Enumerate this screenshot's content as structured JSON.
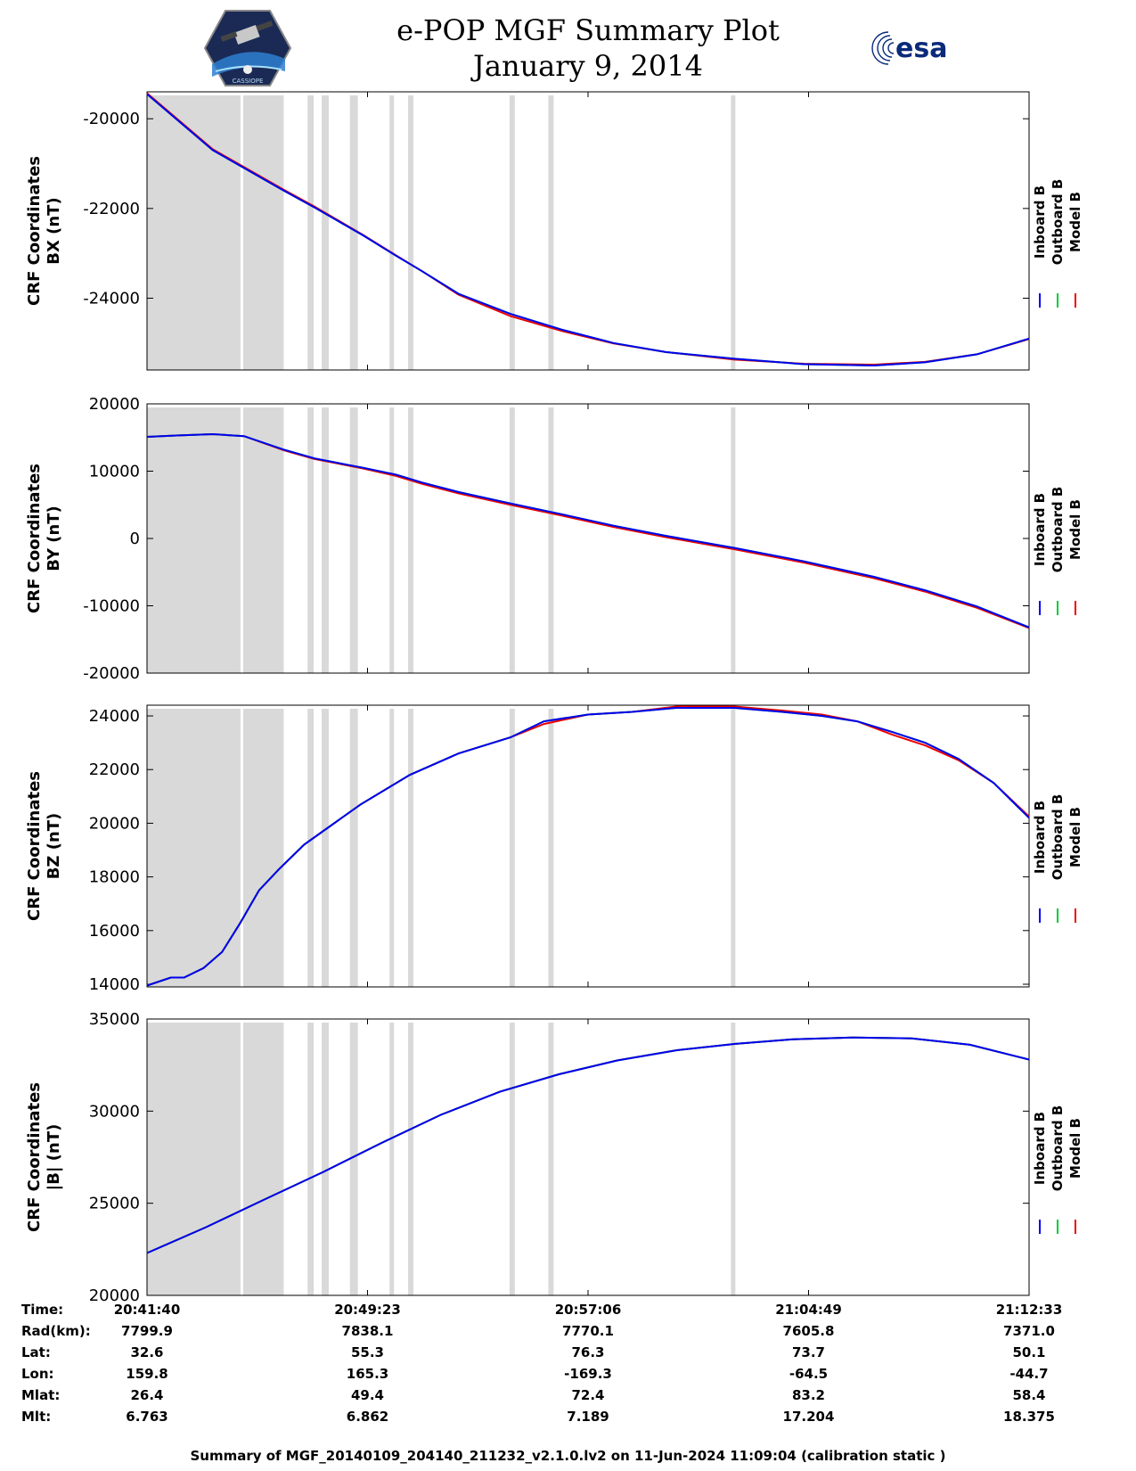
{
  "header": {
    "title": "e-POP MGF Summary Plot",
    "date": "January 9, 2014",
    "epop_logo_text": "CASSIOPE",
    "esa_logo_text": "esa"
  },
  "legend": [
    "Inboard B",
    "Outboard B",
    "Model B"
  ],
  "colors": {
    "inboard": "#0000ee",
    "outboard": "#00cc33",
    "model": "#ee0000",
    "shade": "#d9d9d9"
  },
  "chart_data": [
    {
      "type": "line",
      "ylabel": [
        "CRF Coordinates",
        "BX (nT)"
      ],
      "ylim": [
        -25600,
        -19400
      ],
      "yticks": [
        -20000,
        -22000,
        -24000
      ],
      "series": [
        {
          "name": "Inboard B",
          "x": [
            0,
            7.45,
            15.5,
            19.0,
            24.5,
            28.2,
            31.2,
            35.3,
            41.2,
            47.0,
            52.9,
            58.8,
            66.6,
            74.5,
            82.4,
            88.2,
            94.1,
            100
          ],
          "y": [
            -19450,
            -20700,
            -21600,
            -21980,
            -22600,
            -23050,
            -23400,
            -23900,
            -24350,
            -24700,
            -25000,
            -25200,
            -25350,
            -25470,
            -25500,
            -25430,
            -25250,
            -24900
          ]
        },
        {
          "name": "Outboard B",
          "x": [
            0,
            7.45,
            15.5,
            19.0,
            24.5,
            28.2,
            31.2,
            35.3,
            41.2,
            47.0,
            52.9,
            58.8,
            66.6,
            74.5,
            82.4,
            88.2,
            94.1,
            100
          ],
          "y": [
            -19450,
            -20700,
            -21600,
            -21980,
            -22600,
            -23050,
            -23400,
            -23900,
            -24350,
            -24700,
            -25000,
            -25200,
            -25350,
            -25470,
            -25500,
            -25430,
            -25250,
            -24900
          ]
        },
        {
          "name": "Model B",
          "x": [
            0,
            7.45,
            15.5,
            19.0,
            24.5,
            28.2,
            31.2,
            35.3,
            41.2,
            47.0,
            52.9,
            58.8,
            66.6,
            74.5,
            82.4,
            88.2,
            94.1,
            100
          ],
          "y": [
            -19430,
            -20680,
            -21580,
            -21960,
            -22590,
            -23040,
            -23400,
            -23920,
            -24400,
            -24730,
            -25010,
            -25200,
            -25370,
            -25460,
            -25480,
            -25420,
            -25250,
            -24910
          ]
        }
      ]
    },
    {
      "type": "line",
      "ylabel": [
        "CRF Coordinates",
        "BY (nT)"
      ],
      "ylim": [
        -20000,
        20000
      ],
      "yticks": [
        20000,
        10000,
        0,
        -10000,
        -20000
      ],
      "series": [
        {
          "name": "Inboard B",
          "x": [
            0,
            3.3,
            7.45,
            11.0,
            15.5,
            19.0,
            24.5,
            28.2,
            31.2,
            35.3,
            41.2,
            47.0,
            52.9,
            58.8,
            66.6,
            74.5,
            82.4,
            88.2,
            94.1,
            100
          ],
          "y": [
            15100,
            15300,
            15500,
            15200,
            13200,
            11900,
            10500,
            9500,
            8300,
            6900,
            5200,
            3600,
            1900,
            400,
            -1400,
            -3400,
            -5700,
            -7700,
            -10100,
            -13200
          ]
        },
        {
          "name": "Outboard B",
          "x": [
            0,
            3.3,
            7.45,
            11.0,
            15.5,
            19.0,
            24.5,
            28.2,
            31.2,
            35.3,
            41.2,
            47.0,
            52.9,
            58.8,
            66.6,
            74.5,
            82.4,
            88.2,
            94.1,
            100
          ],
          "y": [
            15100,
            15300,
            15500,
            15200,
            13200,
            11900,
            10500,
            9500,
            8300,
            6900,
            5200,
            3600,
            1900,
            400,
            -1400,
            -3400,
            -5700,
            -7700,
            -10100,
            -13200
          ]
        },
        {
          "name": "Model B",
          "x": [
            0,
            3.3,
            7.45,
            11.0,
            15.5,
            19.0,
            24.5,
            28.2,
            31.2,
            35.3,
            41.2,
            47.0,
            52.9,
            58.8,
            66.6,
            74.5,
            82.4,
            88.2,
            94.1,
            100
          ],
          "y": [
            15100,
            15300,
            15500,
            15200,
            13100,
            11800,
            10400,
            9300,
            8100,
            6700,
            5000,
            3400,
            1700,
            200,
            -1600,
            -3600,
            -5900,
            -7900,
            -10300,
            -13300
          ]
        }
      ]
    },
    {
      "type": "line",
      "ylabel": [
        "CRF Coordinates",
        "BZ (nT)"
      ],
      "ylim": [
        13900,
        24400
      ],
      "yticks": [
        24000,
        22000,
        20000,
        18000,
        16000,
        14000
      ],
      "series": [
        {
          "name": "Inboard B",
          "x": [
            0,
            2.7,
            4.2,
            6.4,
            8.5,
            10.6,
            12.7,
            15.0,
            17.8,
            19.5,
            24.2,
            29.8,
            35.3,
            41.2,
            45.0,
            50.0,
            55.0,
            60.0,
            66.6,
            72.0,
            76.5,
            80.5,
            84.5,
            88.2,
            92.0,
            96.0,
            100
          ],
          "y": [
            13950,
            14250,
            14250,
            14600,
            15200,
            16300,
            17500,
            18300,
            19200,
            19600,
            20700,
            21800,
            22600,
            23200,
            23800,
            24050,
            24150,
            24300,
            24300,
            24150,
            24000,
            23800,
            23400,
            23000,
            22400,
            21500,
            20200
          ]
        },
        {
          "name": "Outboard B",
          "x": [
            0,
            2.7,
            4.2,
            6.4,
            8.5,
            10.6,
            12.7,
            15.0,
            17.8,
            19.5,
            24.2,
            29.8,
            35.3,
            41.2,
            45.0,
            50.0,
            55.0,
            60.0,
            66.6,
            72.0,
            76.5,
            80.5,
            84.5,
            88.2,
            92.0,
            96.0,
            100
          ],
          "y": [
            13950,
            14250,
            14250,
            14600,
            15200,
            16300,
            17500,
            18300,
            19200,
            19600,
            20700,
            21800,
            22600,
            23200,
            23800,
            24050,
            24150,
            24300,
            24300,
            24150,
            24000,
            23800,
            23400,
            23000,
            22400,
            21500,
            20200
          ]
        },
        {
          "name": "Model B",
          "x": [
            0,
            2.7,
            4.2,
            6.4,
            8.5,
            10.6,
            12.7,
            15.0,
            17.8,
            19.5,
            24.2,
            29.8,
            35.3,
            41.2,
            45.0,
            50.0,
            55.0,
            60.0,
            66.6,
            72.0,
            76.5,
            80.5,
            84.5,
            88.2,
            92.0,
            96.0,
            100
          ],
          "y": [
            13950,
            14250,
            14250,
            14600,
            15200,
            16300,
            17500,
            18300,
            19200,
            19600,
            20700,
            21800,
            22600,
            23200,
            23700,
            24050,
            24150,
            24350,
            24350,
            24200,
            24050,
            23800,
            23300,
            22900,
            22350,
            21500,
            20250
          ]
        }
      ]
    },
    {
      "type": "line",
      "ylabel": [
        "CRF Coordinates",
        "|B| (nT)"
      ],
      "ylim": [
        20000,
        35000
      ],
      "yticks": [
        35000,
        30000,
        25000,
        20000
      ],
      "series": [
        {
          "name": "Inboard B",
          "x": [
            0,
            6.7,
            13.3,
            20.0,
            26.7,
            33.3,
            40.0,
            46.7,
            53.3,
            60.0,
            66.7,
            73.3,
            80.0,
            86.7,
            93.3,
            100
          ],
          "y": [
            22300,
            23700,
            25200,
            26700,
            28300,
            29800,
            31050,
            32000,
            32750,
            33300,
            33650,
            33900,
            34000,
            33950,
            33600,
            32800
          ]
        },
        {
          "name": "Outboard B",
          "x": [
            0,
            6.7,
            13.3,
            20.0,
            26.7,
            33.3,
            40.0,
            46.7,
            53.3,
            60.0,
            66.7,
            73.3,
            80.0,
            86.7,
            93.3,
            100
          ],
          "y": [
            22300,
            23700,
            25200,
            26700,
            28300,
            29800,
            31050,
            32000,
            32750,
            33300,
            33650,
            33900,
            34000,
            33950,
            33600,
            32800
          ]
        },
        {
          "name": "Model B",
          "x": [
            0,
            6.7,
            13.3,
            20.0,
            26.7,
            33.3,
            40.0,
            46.7,
            53.3,
            60.0,
            66.7,
            73.3,
            80.0,
            86.7,
            93.3,
            100
          ],
          "y": [
            22300,
            23700,
            25200,
            26700,
            28300,
            29800,
            31050,
            32000,
            32750,
            33300,
            33650,
            33900,
            34000,
            33950,
            33600,
            32800
          ]
        }
      ]
    }
  ],
  "x_axis": {
    "range_percent": [
      0,
      100
    ],
    "shaded_intervals": [
      [
        0,
        10.6
      ],
      [
        10.9,
        15.5
      ],
      [
        18.2,
        18.9
      ],
      [
        19.8,
        20.6
      ],
      [
        23.0,
        23.9
      ],
      [
        27.5,
        28.0
      ],
      [
        29.6,
        30.2
      ],
      [
        41.1,
        41.7
      ],
      [
        45.5,
        46.1
      ],
      [
        66.2,
        66.7
      ]
    ]
  },
  "info_table": {
    "labels": [
      "Time:",
      "Rad(km):",
      "Lat:",
      "Lon:",
      "Mlat:",
      "Mlt:"
    ],
    "columns": [
      [
        "20:41:40",
        "7799.9",
        "32.6",
        "159.8",
        "26.4",
        "6.763"
      ],
      [
        "20:49:23",
        "7838.1",
        "55.3",
        "165.3",
        "49.4",
        "6.862"
      ],
      [
        "20:57:06",
        "7770.1",
        "76.3",
        "-169.3",
        "72.4",
        "7.189"
      ],
      [
        "21:04:49",
        "7605.8",
        "73.7",
        "-64.5",
        "83.2",
        "17.204"
      ],
      [
        "21:12:33",
        "7371.0",
        "50.1",
        "-44.7",
        "58.4",
        "18.375"
      ]
    ]
  },
  "footer": "Summary of MGF_20140109_204140_211232_v2.1.0.lv2 on 11-Jun-2024 11:09:04 (calibration static )"
}
